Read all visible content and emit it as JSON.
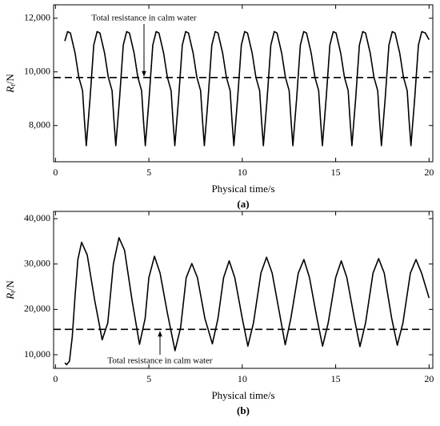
{
  "chart_data": [
    {
      "type": "line",
      "panel_label": "(a)",
      "xlabel": "Physical time/s",
      "ylabel_symbol": "R",
      "ylabel_subscript": "t",
      "ylabel_unit": "/N",
      "annotation": "Total resistance in calm water",
      "hline": 9790,
      "color": "#000000",
      "xlim": [
        -0.1,
        20.2
      ],
      "xticks": [
        0,
        5,
        10,
        15,
        20
      ],
      "ylim": [
        6650,
        12500
      ],
      "yticks": [
        {
          "value": 8000,
          "label": "8,000"
        },
        {
          "value": 10000,
          "label": "10,000"
        },
        {
          "value": 12000,
          "label": "12,000"
        }
      ],
      "x": [
        0.5,
        0.65,
        0.8,
        1.05,
        1.25,
        1.45,
        1.55,
        1.65,
        1.85,
        2.05,
        2.23,
        2.38,
        2.63,
        2.83,
        3.03,
        3.13,
        3.23,
        3.43,
        3.63,
        3.81,
        3.96,
        4.21,
        4.41,
        4.61,
        4.71,
        4.81,
        5.01,
        5.21,
        5.39,
        5.54,
        5.79,
        5.99,
        6.19,
        6.29,
        6.39,
        6.59,
        6.79,
        6.97,
        7.12,
        7.37,
        7.57,
        7.77,
        7.87,
        7.97,
        8.17,
        8.37,
        8.55,
        8.7,
        8.95,
        9.15,
        9.35,
        9.45,
        9.55,
        9.75,
        9.95,
        10.13,
        10.28,
        10.53,
        10.73,
        10.93,
        11.03,
        11.13,
        11.33,
        11.53,
        11.71,
        11.86,
        12.11,
        12.31,
        12.51,
        12.61,
        12.71,
        12.91,
        13.11,
        13.29,
        13.44,
        13.69,
        13.89,
        14.09,
        14.19,
        14.29,
        14.49,
        14.69,
        14.87,
        15.02,
        15.27,
        15.47,
        15.67,
        15.77,
        15.87,
        16.07,
        16.27,
        16.45,
        16.6,
        16.85,
        17.05,
        17.25,
        17.35,
        17.45,
        17.65,
        17.85,
        18.03,
        18.18,
        18.43,
        18.63,
        18.83,
        18.93,
        19.03,
        19.23,
        19.43,
        19.61,
        19.8,
        20.0
      ],
      "values": [
        11150,
        11500,
        11450,
        10700,
        9800,
        9300,
        8200,
        7250,
        9000,
        11000,
        11500,
        11450,
        10700,
        9800,
        9300,
        8200,
        7250,
        9000,
        11000,
        11500,
        11450,
        10700,
        9800,
        9300,
        8200,
        7250,
        9000,
        11000,
        11500,
        11450,
        10700,
        9800,
        9300,
        8200,
        7250,
        9000,
        11000,
        11500,
        11450,
        10700,
        9800,
        9300,
        8200,
        7250,
        9000,
        11000,
        11500,
        11450,
        10700,
        9800,
        9300,
        8200,
        7250,
        9000,
        11000,
        11500,
        11450,
        10700,
        9800,
        9300,
        8200,
        7250,
        9000,
        11000,
        11500,
        11450,
        10700,
        9800,
        9300,
        8200,
        7250,
        9000,
        11000,
        11500,
        11450,
        10700,
        9800,
        9300,
        8200,
        7250,
        9000,
        11000,
        11500,
        11450,
        10700,
        9800,
        9300,
        8200,
        7250,
        9000,
        11000,
        11500,
        11450,
        10700,
        9800,
        9300,
        8200,
        7250,
        9000,
        11000,
        11500,
        11450,
        10700,
        9800,
        9300,
        8200,
        7250,
        9000,
        11000,
        11500,
        11450,
        11200
      ]
    },
    {
      "type": "line",
      "panel_label": "(b)",
      "xlabel": "Physical time/s",
      "ylabel_symbol": "R",
      "ylabel_subscript": "t",
      "ylabel_unit": "/N",
      "annotation": "Total resistance in calm water",
      "hline": 15600,
      "color": "#000000",
      "xlim": [
        -0.1,
        20.2
      ],
      "xticks": [
        0,
        5,
        10,
        15,
        20
      ],
      "ylim": [
        7000,
        41600
      ],
      "yticks": [
        {
          "value": 10000,
          "label": "10,000"
        },
        {
          "value": 20000,
          "label": "20,000"
        },
        {
          "value": 30000,
          "label": "30,000"
        },
        {
          "value": 40000,
          "label": "40,000"
        }
      ],
      "x": [
        0.5,
        0.6,
        0.75,
        0.9,
        1.05,
        1.2,
        1.4,
        1.7,
        2.1,
        2.5,
        2.8,
        3.1,
        3.4,
        3.7,
        4.1,
        4.5,
        4.8,
        5.0,
        5.3,
        5.6,
        6.0,
        6.4,
        6.7,
        7.0,
        7.3,
        7.6,
        8.0,
        8.4,
        8.7,
        9.0,
        9.3,
        9.6,
        10.0,
        10.3,
        10.6,
        11.0,
        11.3,
        11.6,
        12.0,
        12.3,
        12.6,
        13.0,
        13.3,
        13.6,
        14.0,
        14.3,
        14.6,
        15.0,
        15.3,
        15.6,
        16.0,
        16.3,
        16.6,
        17.0,
        17.3,
        17.6,
        18.0,
        18.3,
        18.6,
        19.0,
        19.3,
        19.6,
        20.0
      ],
      "values": [
        8200,
        7800,
        8600,
        14000,
        23000,
        31000,
        34800,
        32000,
        22000,
        13300,
        17000,
        30000,
        35800,
        33000,
        22000,
        12300,
        18000,
        27000,
        31700,
        28000,
        19000,
        10900,
        16000,
        27000,
        30100,
        27000,
        18000,
        12400,
        18000,
        27000,
        30700,
        27000,
        18000,
        11900,
        17000,
        28000,
        31500,
        28000,
        19000,
        12200,
        18000,
        28000,
        31000,
        27000,
        18000,
        11900,
        17000,
        27000,
        30700,
        27000,
        18000,
        11800,
        17000,
        28000,
        31200,
        28000,
        18000,
        12100,
        17000,
        28000,
        31000,
        28000,
        22500
      ]
    }
  ]
}
